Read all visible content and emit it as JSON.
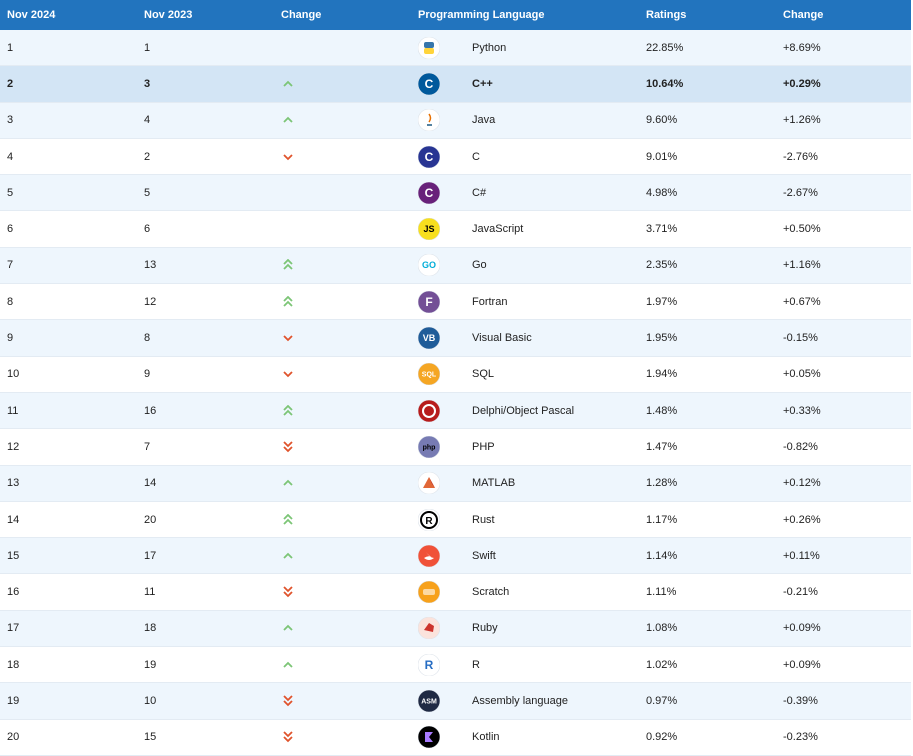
{
  "headers": [
    "Nov 2024",
    "Nov 2023",
    "Change",
    "Programming Language",
    "Ratings",
    "Change"
  ],
  "rows": [
    {
      "now": "1",
      "prev": "1",
      "trend": "none",
      "icon": "python-icon",
      "lang": "Python",
      "rating": "22.85%",
      "change": "+8.69%"
    },
    {
      "now": "2",
      "prev": "3",
      "trend": "up",
      "icon": "cpp-icon",
      "lang": "C++",
      "rating": "10.64%",
      "change": "+0.29%"
    },
    {
      "now": "3",
      "prev": "4",
      "trend": "up",
      "icon": "java-icon",
      "lang": "Java",
      "rating": "9.60%",
      "change": "+1.26%"
    },
    {
      "now": "4",
      "prev": "2",
      "trend": "down",
      "icon": "c-icon",
      "lang": "C",
      "rating": "9.01%",
      "change": "-2.76%"
    },
    {
      "now": "5",
      "prev": "5",
      "trend": "none",
      "icon": "csharp-icon",
      "lang": "C#",
      "rating": "4.98%",
      "change": "-2.67%"
    },
    {
      "now": "6",
      "prev": "6",
      "trend": "none",
      "icon": "javascript-icon",
      "lang": "JavaScript",
      "rating": "3.71%",
      "change": "+0.50%"
    },
    {
      "now": "7",
      "prev": "13",
      "trend": "up2",
      "icon": "go-icon",
      "lang": "Go",
      "rating": "2.35%",
      "change": "+1.16%"
    },
    {
      "now": "8",
      "prev": "12",
      "trend": "up2",
      "icon": "fortran-icon",
      "lang": "Fortran",
      "rating": "1.97%",
      "change": "+0.67%"
    },
    {
      "now": "9",
      "prev": "8",
      "trend": "down",
      "icon": "visual-basic-icon",
      "lang": "Visual Basic",
      "rating": "1.95%",
      "change": "-0.15%"
    },
    {
      "now": "10",
      "prev": "9",
      "trend": "down",
      "icon": "sql-icon",
      "lang": "SQL",
      "rating": "1.94%",
      "change": "+0.05%"
    },
    {
      "now": "11",
      "prev": "16",
      "trend": "up2",
      "icon": "delphi-icon",
      "lang": "Delphi/Object Pascal",
      "rating": "1.48%",
      "change": "+0.33%"
    },
    {
      "now": "12",
      "prev": "7",
      "trend": "down2",
      "icon": "php-icon",
      "lang": "PHP",
      "rating": "1.47%",
      "change": "-0.82%"
    },
    {
      "now": "13",
      "prev": "14",
      "trend": "up",
      "icon": "matlab-icon",
      "lang": "MATLAB",
      "rating": "1.28%",
      "change": "+0.12%"
    },
    {
      "now": "14",
      "prev": "20",
      "trend": "up2",
      "icon": "rust-icon",
      "lang": "Rust",
      "rating": "1.17%",
      "change": "+0.26%"
    },
    {
      "now": "15",
      "prev": "17",
      "trend": "up",
      "icon": "swift-icon",
      "lang": "Swift",
      "rating": "1.14%",
      "change": "+0.11%"
    },
    {
      "now": "16",
      "prev": "11",
      "trend": "down2",
      "icon": "scratch-icon",
      "lang": "Scratch",
      "rating": "1.11%",
      "change": "-0.21%"
    },
    {
      "now": "17",
      "prev": "18",
      "trend": "up",
      "icon": "ruby-icon",
      "lang": "Ruby",
      "rating": "1.08%",
      "change": "+0.09%"
    },
    {
      "now": "18",
      "prev": "19",
      "trend": "up",
      "icon": "r-icon",
      "lang": "R",
      "rating": "1.02%",
      "change": "+0.09%"
    },
    {
      "now": "19",
      "prev": "10",
      "trend": "down2",
      "icon": "assembly-icon",
      "lang": "Assembly language",
      "rating": "0.97%",
      "change": "-0.39%"
    },
    {
      "now": "20",
      "prev": "15",
      "trend": "down2",
      "icon": "kotlin-icon",
      "lang": "Kotlin",
      "rating": "0.92%",
      "change": "-0.23%"
    }
  ],
  "highlighted_row": 1,
  "colors": {
    "header": "#2274be",
    "up": "#7cc576",
    "down": "#e0532c",
    "row_alt": "#eef6fd",
    "row_highlight": "#d3e5f5"
  },
  "icon_text": {
    "javascript-icon": "JS",
    "visual-basic-icon": "VB",
    "sql-icon": "SQL",
    "php-icon": "php",
    "assembly-icon": "ASM",
    "fortran-icon": "F",
    "c-icon": "C",
    "cpp-icon": "C",
    "csharp-icon": "C",
    "go-icon": "GO",
    "r-icon": "R"
  }
}
